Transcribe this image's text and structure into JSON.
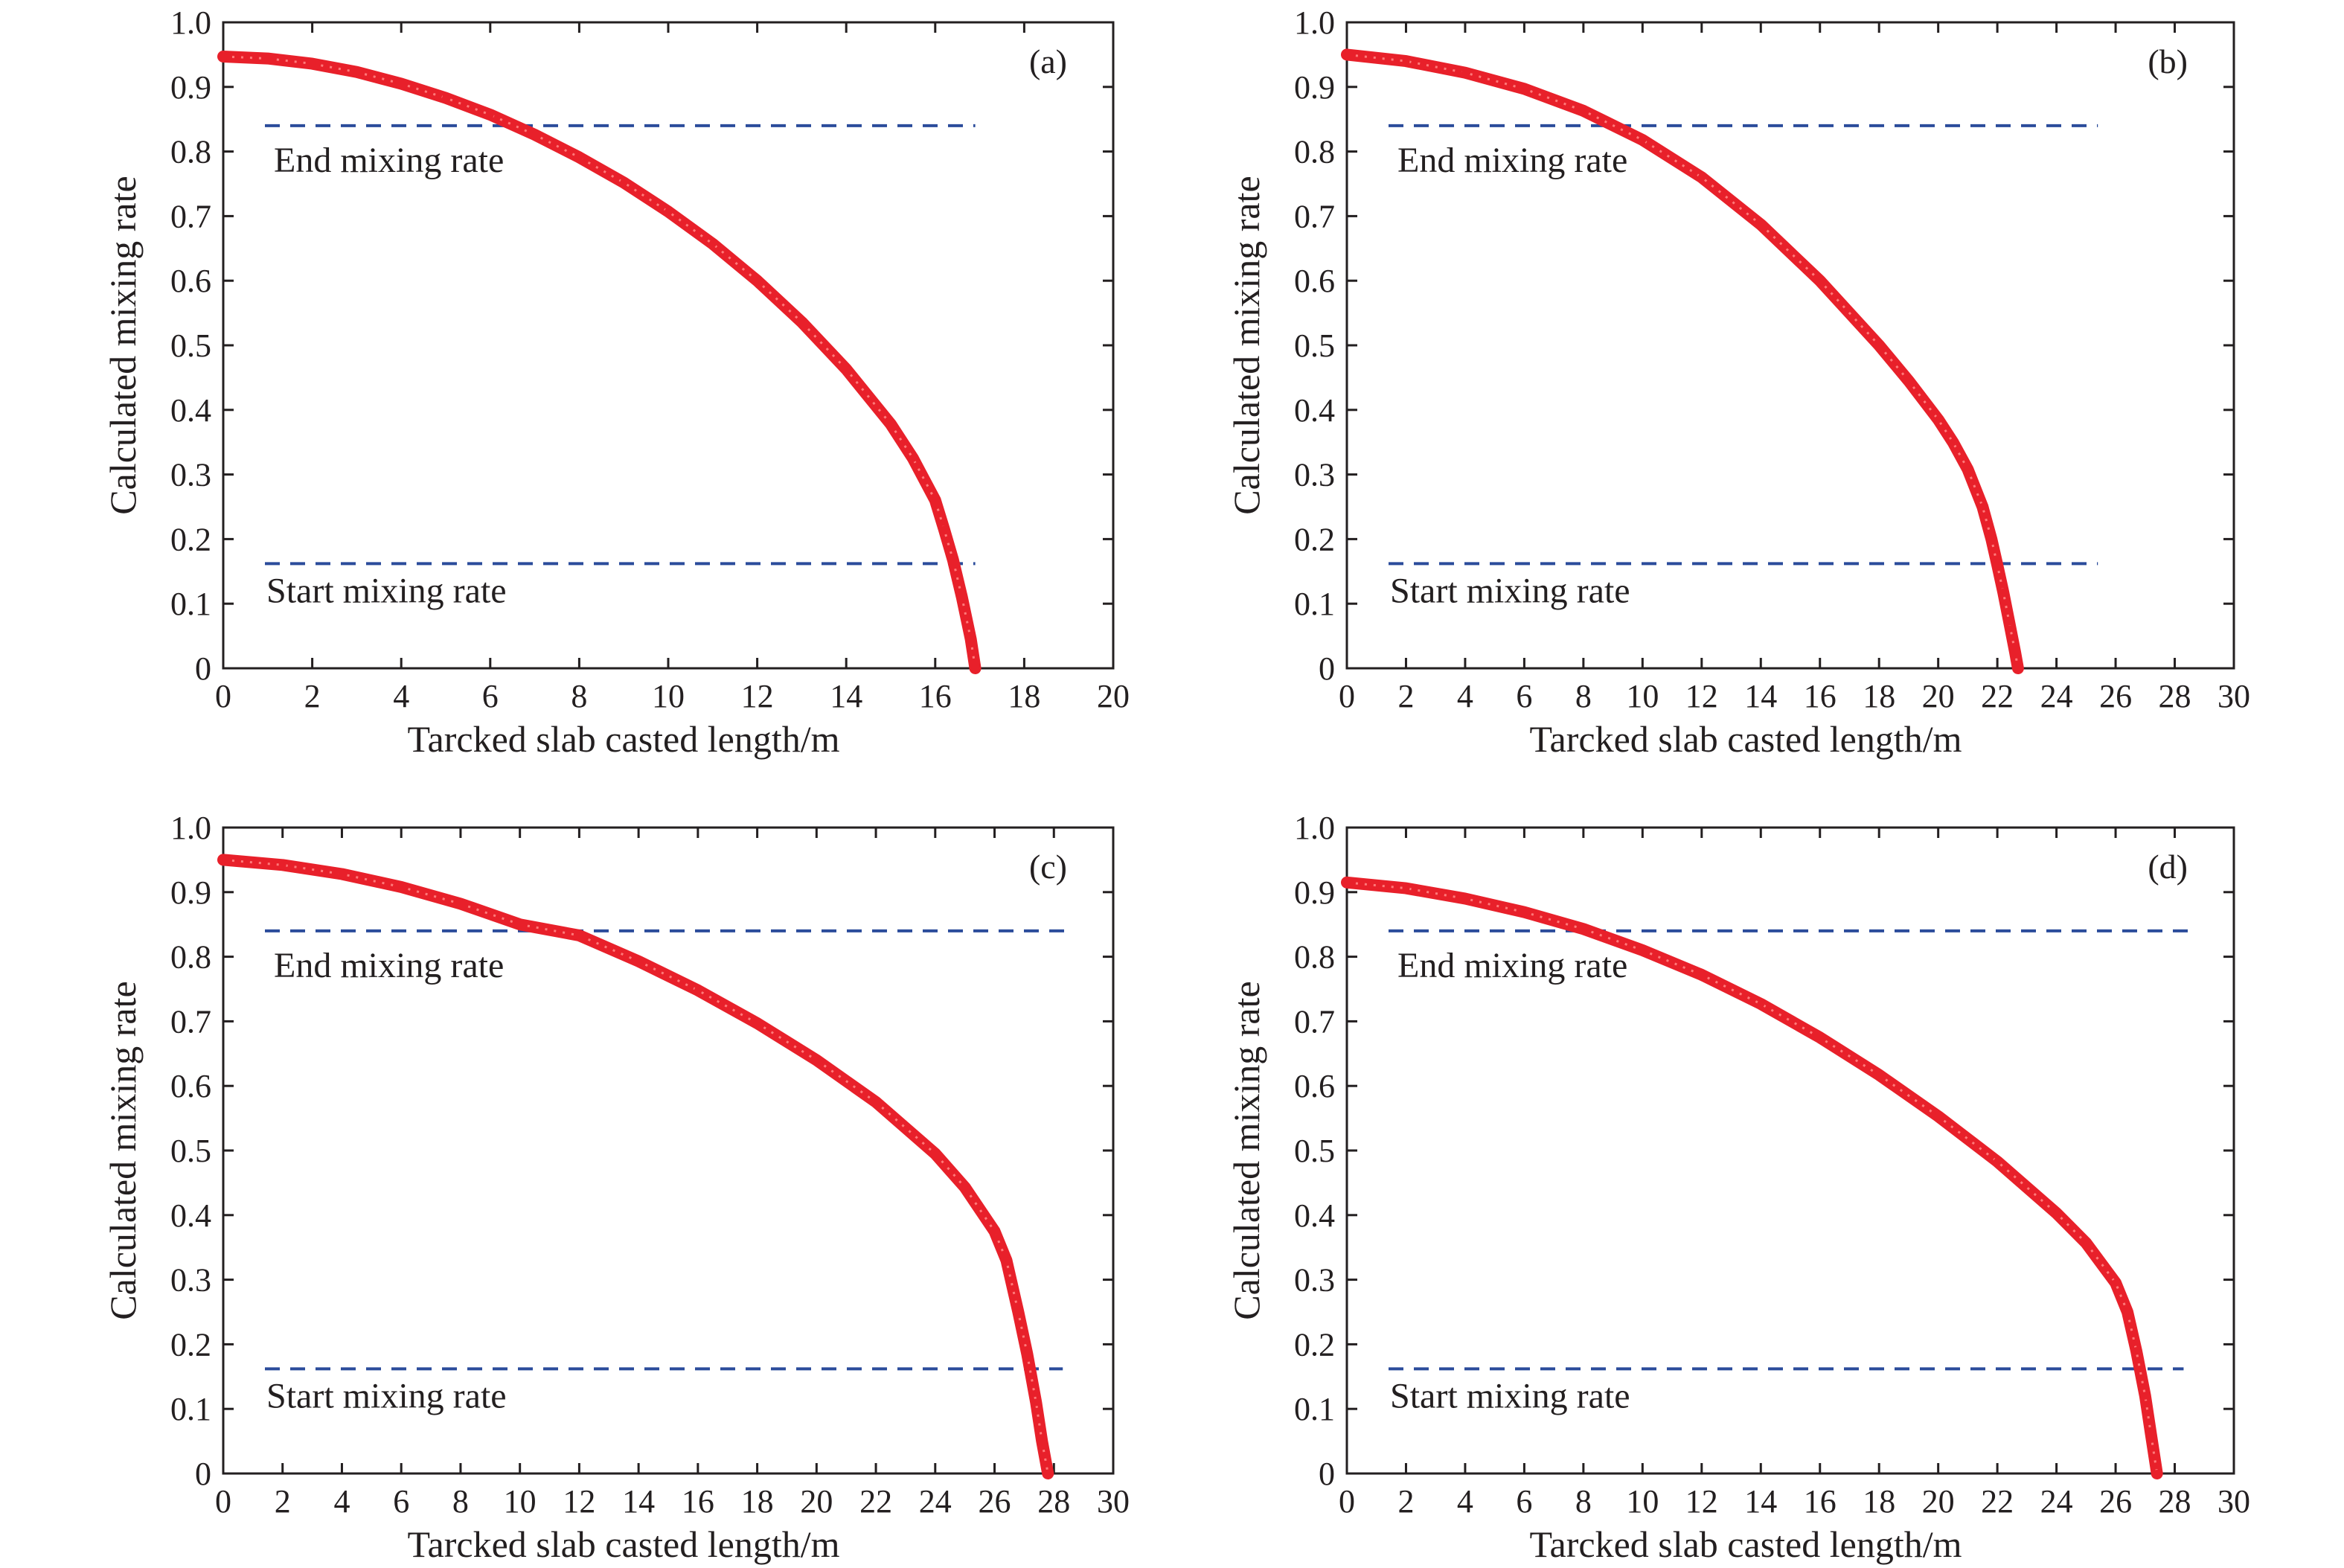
{
  "colors": {
    "series": "#e8202a",
    "reference": "#2b4c9b",
    "axis": "#231f20"
  },
  "chart_data": [
    {
      "type": "line",
      "panel_label": "(a)",
      "xlabel": "Tarcked slab casted length/m",
      "ylabel": "Calculated mixing rate",
      "xlim": [
        0,
        20
      ],
      "ylim": [
        0,
        1.0
      ],
      "xticks": [
        "0",
        "2",
        "4",
        "6",
        "8",
        "10",
        "12",
        "14",
        "16",
        "18",
        "20"
      ],
      "yticks": [
        "0",
        "0.1",
        "0.2",
        "0.3",
        "0.4",
        "0.5",
        "0.6",
        "0.7",
        "0.8",
        "0.9",
        "1.0"
      ],
      "reference_lines": [
        {
          "label": "End mixing rate",
          "y": 0.84,
          "x_end": 16.9
        },
        {
          "label": "Start mixing rate",
          "y": 0.162,
          "x_end": 16.9
        }
      ],
      "series": [
        {
          "x": [
            0,
            1,
            2,
            3,
            4,
            5,
            6,
            7,
            8,
            9,
            10,
            11,
            12,
            13,
            14,
            15,
            15.5,
            16,
            16.2,
            16.4,
            16.6,
            16.8,
            16.9
          ],
          "y": [
            0.947,
            0.944,
            0.936,
            0.923,
            0.905,
            0.883,
            0.857,
            0.826,
            0.791,
            0.752,
            0.707,
            0.657,
            0.6,
            0.536,
            0.463,
            0.378,
            0.325,
            0.26,
            0.215,
            0.168,
            0.11,
            0.045,
            0.0
          ]
        }
      ]
    },
    {
      "type": "line",
      "panel_label": "(b)",
      "xlabel": "Tarcked slab casted length/m",
      "ylabel": "Calculated mixing rate",
      "xlim": [
        0,
        30
      ],
      "ylim": [
        0,
        1.0
      ],
      "xticks": [
        "0",
        "2",
        "4",
        "6",
        "8",
        "10",
        "12",
        "14",
        "16",
        "18",
        "20",
        "22",
        "24",
        "26",
        "28",
        "30"
      ],
      "yticks": [
        "0",
        "0.1",
        "0.2",
        "0.3",
        "0.4",
        "0.5",
        "0.6",
        "0.7",
        "0.8",
        "0.9",
        "1.0"
      ],
      "reference_lines": [
        {
          "label": "End mixing rate",
          "y": 0.84,
          "x_end": 25.4
        },
        {
          "label": "Start mixing rate",
          "y": 0.162,
          "x_end": 25.4
        }
      ],
      "series": [
        {
          "x": [
            0,
            2,
            4,
            6,
            8,
            10,
            12,
            14,
            16,
            18,
            19,
            20,
            20.5,
            21,
            21.5,
            21.8,
            22,
            22.2,
            22.4,
            22.6,
            22.7
          ],
          "y": [
            0.95,
            0.94,
            0.922,
            0.897,
            0.863,
            0.818,
            0.76,
            0.687,
            0.6,
            0.5,
            0.445,
            0.385,
            0.35,
            0.308,
            0.25,
            0.2,
            0.16,
            0.118,
            0.072,
            0.025,
            0.0
          ]
        }
      ]
    },
    {
      "type": "line",
      "panel_label": "(c)",
      "xlabel": "Tarcked slab casted length/m",
      "ylabel": "Calculated mixing rate",
      "xlim": [
        0,
        30
      ],
      "ylim": [
        0,
        1.0
      ],
      "xticks": [
        "0",
        "2",
        "4",
        "6",
        "8",
        "10",
        "12",
        "14",
        "16",
        "18",
        "20",
        "22",
        "24",
        "26",
        "28",
        "30"
      ],
      "yticks": [
        "0",
        "0.1",
        "0.2",
        "0.3",
        "0.4",
        "0.5",
        "0.6",
        "0.7",
        "0.8",
        "0.9",
        "1.0"
      ],
      "reference_lines": [
        {
          "label": "End mixing rate",
          "y": 0.84,
          "x_end": 28.6
        },
        {
          "label": "Start mixing rate",
          "y": 0.162,
          "x_end": 28.3
        }
      ],
      "series": [
        {
          "x": [
            0,
            2,
            4,
            6,
            8,
            10,
            12,
            14,
            16,
            18,
            20,
            22,
            24,
            25,
            26,
            26.4,
            26.8,
            27.1,
            27.4,
            27.6,
            27.8
          ],
          "y": [
            0.95,
            0.942,
            0.928,
            0.908,
            0.882,
            0.85,
            0.833,
            0.793,
            0.748,
            0.697,
            0.64,
            0.575,
            0.495,
            0.443,
            0.375,
            0.33,
            0.25,
            0.185,
            0.11,
            0.05,
            0.0
          ]
        }
      ]
    },
    {
      "type": "line",
      "panel_label": "(d)",
      "xlabel": "Tarcked slab casted length/m",
      "ylabel": "Calculated mixing rate",
      "xlim": [
        0,
        30
      ],
      "ylim": [
        0,
        1.0
      ],
      "xticks": [
        "0",
        "2",
        "4",
        "6",
        "8",
        "10",
        "12",
        "14",
        "16",
        "18",
        "20",
        "22",
        "24",
        "26",
        "28",
        "30"
      ],
      "yticks": [
        "0",
        "0.1",
        "0.2",
        "0.3",
        "0.4",
        "0.5",
        "0.6",
        "0.7",
        "0.8",
        "0.9",
        "1.0"
      ],
      "reference_lines": [
        {
          "label": "End mixing rate",
          "y": 0.84,
          "x_end": 28.6
        },
        {
          "label": "Start mixing rate",
          "y": 0.162,
          "x_end": 28.3
        }
      ],
      "series": [
        {
          "x": [
            0,
            2,
            4,
            6,
            8,
            10,
            12,
            14,
            16,
            18,
            20,
            22,
            24,
            25,
            26,
            26.4,
            26.7,
            27,
            27.2,
            27.4
          ],
          "y": [
            0.915,
            0.906,
            0.89,
            0.869,
            0.843,
            0.81,
            0.772,
            0.727,
            0.675,
            0.617,
            0.553,
            0.483,
            0.403,
            0.357,
            0.295,
            0.25,
            0.19,
            0.12,
            0.06,
            0.0
          ]
        }
      ]
    }
  ]
}
